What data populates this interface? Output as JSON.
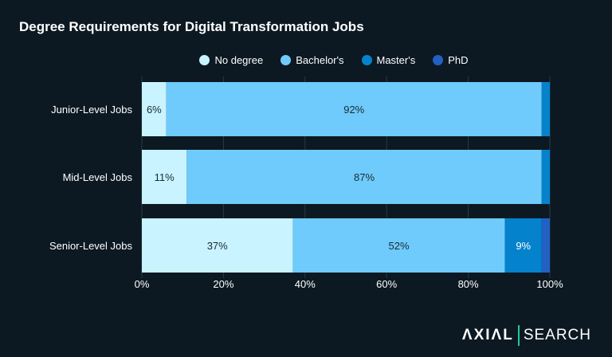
{
  "chart_data": {
    "type": "bar",
    "orientation": "horizontal",
    "stacked": true,
    "title": "Degree Requirements for Digital Transformation Jobs",
    "categories": [
      "Junior-Level Jobs",
      "Mid-Level Jobs",
      "Senior-Level Jobs"
    ],
    "series": [
      {
        "name": "No degree",
        "color": "#c9f3ff",
        "values": [
          6,
          11,
          37
        ]
      },
      {
        "name": "Bachelor's",
        "color": "#6ecbfb",
        "values": [
          92,
          87,
          52
        ]
      },
      {
        "name": "Master's",
        "color": "#0582cc",
        "values": [
          2,
          2,
          9
        ]
      },
      {
        "name": "PhD",
        "color": "#2260c4",
        "values": [
          0,
          0,
          2
        ]
      }
    ],
    "xlim": [
      0,
      100
    ],
    "xticks": [
      "0%",
      "20%",
      "40%",
      "60%",
      "80%",
      "100%"
    ],
    "grid": true,
    "legend": "top"
  },
  "branding": {
    "logo_left": "ΛXIΛL",
    "logo_right": "SEARCH"
  }
}
